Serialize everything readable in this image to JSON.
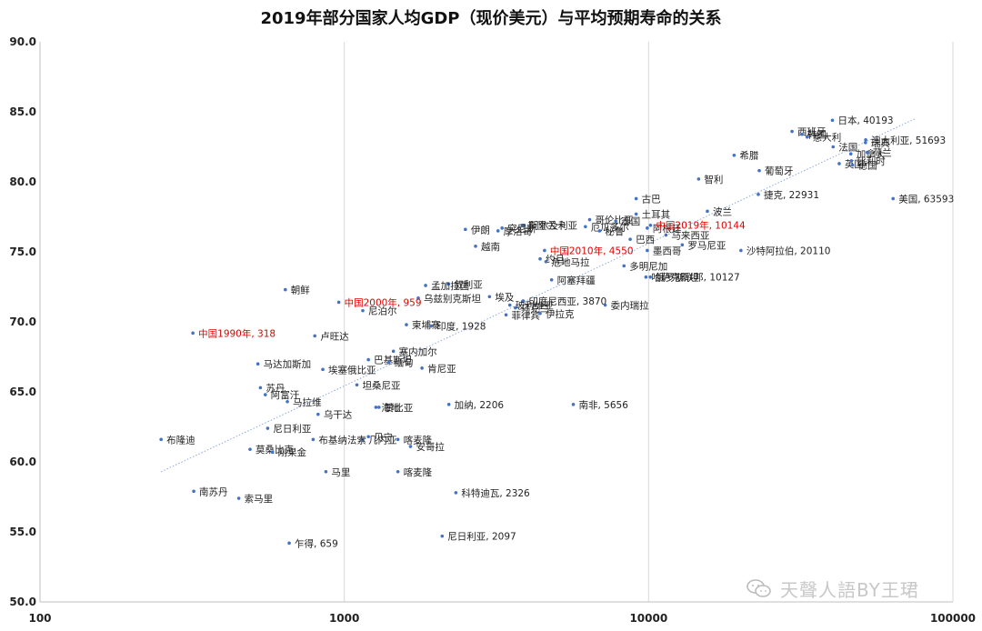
{
  "chart_data": {
    "type": "scatter",
    "title": "2019年部分国家人均GDP（现价美元）与平均预期寿命的关系",
    "x_scale": "log",
    "xlim": [
      100,
      100000
    ],
    "ylim": [
      50,
      90
    ],
    "x_ticks": [
      "100",
      "1000",
      "10000",
      "100000"
    ],
    "y_ticks": [
      "50.0",
      "55.0",
      "60.0",
      "65.0",
      "70.0",
      "75.0",
      "80.0",
      "85.0",
      "90.0"
    ],
    "grid": "vertical",
    "trendline": {
      "style": "dotted",
      "from": [
        250,
        59.3
      ],
      "to": [
        75000,
        84.5
      ]
    },
    "point_color": "#4472c4",
    "highlight_color": "#e00000",
    "points": [
      {
        "label": "日本, 40193",
        "x": 40193,
        "y": 84.4
      },
      {
        "label": "西班牙",
        "x": 29600,
        "y": 83.6
      },
      {
        "label": "韩国",
        "x": 31900,
        "y": 83.4
      },
      {
        "label": "意大利",
        "x": 33200,
        "y": 83.2
      },
      {
        "label": "瑞典",
        "x": 51600,
        "y": 82.8
      },
      {
        "label": "澳大利亚, 51693",
        "x": 51693,
        "y": 83.0
      },
      {
        "label": "法国",
        "x": 40400,
        "y": 82.5
      },
      {
        "label": "加拿大",
        "x": 46200,
        "y": 82.0
      },
      {
        "label": "荷兰",
        "x": 52300,
        "y": 82.1
      },
      {
        "label": "英国",
        "x": 42300,
        "y": 81.3
      },
      {
        "label": "比利时",
        "x": 46400,
        "y": 81.5
      },
      {
        "label": "德国",
        "x": 46800,
        "y": 81.2
      },
      {
        "label": "希腊",
        "x": 19100,
        "y": 81.9
      },
      {
        "label": "葡萄牙",
        "x": 23100,
        "y": 80.8
      },
      {
        "label": "智利",
        "x": 14600,
        "y": 80.2
      },
      {
        "label": "美国, 63593",
        "x": 63593,
        "y": 78.8
      },
      {
        "label": "捷克, 22931",
        "x": 22931,
        "y": 79.1
      },
      {
        "label": "古巴",
        "x": 9100,
        "y": 78.8
      },
      {
        "label": "土耳其",
        "x": 9100,
        "y": 77.7
      },
      {
        "label": "波兰",
        "x": 15600,
        "y": 77.9
      },
      {
        "label": "哥伦比亚",
        "x": 6400,
        "y": 77.3
      },
      {
        "label": "泰国",
        "x": 7800,
        "y": 77.2
      },
      {
        "label": "阿尔及利亚",
        "x": 3900,
        "y": 76.9
      },
      {
        "label": "斯里兰卡",
        "x": 3850,
        "y": 76.9
      },
      {
        "label": "厄瓜多尔",
        "x": 6200,
        "y": 76.8
      },
      {
        "label": "突尼斯",
        "x": 3300,
        "y": 76.7
      },
      {
        "label": "秘鲁",
        "x": 6900,
        "y": 76.5
      },
      {
        "label": "阿根廷",
        "x": 9900,
        "y": 76.7
      },
      {
        "label": "中国2019年, 10144",
        "x": 10144,
        "y": 76.9,
        "highlight": true
      },
      {
        "label": "伊朗",
        "x": 2500,
        "y": 76.6
      },
      {
        "label": "马来西亚",
        "x": 11400,
        "y": 76.2
      },
      {
        "label": "摩洛哥",
        "x": 3200,
        "y": 76.5
      },
      {
        "label": "巴西",
        "x": 8700,
        "y": 75.9
      },
      {
        "label": "越南",
        "x": 2700,
        "y": 75.4
      },
      {
        "label": "罗马尼亚",
        "x": 12900,
        "y": 75.5
      },
      {
        "label": "墨西哥",
        "x": 9900,
        "y": 75.1
      },
      {
        "label": "沙特阿拉伯, 20110",
        "x": 20110,
        "y": 75.1
      },
      {
        "label": "中国2010年, 4550",
        "x": 4550,
        "y": 75.1,
        "highlight": true
      },
      {
        "label": "约旦",
        "x": 4400,
        "y": 74.5
      },
      {
        "label": "危地马拉",
        "x": 4600,
        "y": 74.3
      },
      {
        "label": "多明尼加",
        "x": 8300,
        "y": 74.0
      },
      {
        "label": "叙利亚",
        "x": 2200,
        "y": 72.7
      },
      {
        "label": "孟加拉国",
        "x": 1850,
        "y": 72.6
      },
      {
        "label": "朝鲜",
        "x": 640,
        "y": 72.3
      },
      {
        "label": "阿塞拜疆",
        "x": 4800,
        "y": 73.0
      },
      {
        "label": "哈萨克斯坦",
        "x": 9800,
        "y": 73.2
      },
      {
        "label": "俄罗斯联邦, 10127",
        "x": 10127,
        "y": 73.2
      },
      {
        "label": "埃及",
        "x": 3000,
        "y": 71.8
      },
      {
        "label": "乌兹别克斯坦",
        "x": 1750,
        "y": 71.7
      },
      {
        "label": "印度尼西亚, 3870",
        "x": 3870,
        "y": 71.5
      },
      {
        "label": "委内瑞拉",
        "x": 7200,
        "y": 71.2
      },
      {
        "label": "中国2000年, 959",
        "x": 959,
        "y": 71.4,
        "highlight": true
      },
      {
        "label": "玻利维亚",
        "x": 3500,
        "y": 71.2
      },
      {
        "label": "乌克兰",
        "x": 3650,
        "y": 71.0
      },
      {
        "label": "菲律宾",
        "x": 3400,
        "y": 70.5
      },
      {
        "label": "尼泊尔",
        "x": 1150,
        "y": 70.8
      },
      {
        "label": "伊拉克",
        "x": 4400,
        "y": 70.6
      },
      {
        "label": "中国1990年, 318",
        "x": 318,
        "y": 69.2,
        "highlight": true
      },
      {
        "label": "卢旺达",
        "x": 800,
        "y": 69.0
      },
      {
        "label": "柬埔寨",
        "x": 1600,
        "y": 69.8
      },
      {
        "label": "印度, 1928",
        "x": 1928,
        "y": 69.7
      },
      {
        "label": "塞内加尔",
        "x": 1450,
        "y": 67.9
      },
      {
        "label": "巴基斯坦",
        "x": 1200,
        "y": 67.3
      },
      {
        "label": "缅甸",
        "x": 1400,
        "y": 67.1
      },
      {
        "label": "马达加斯加",
        "x": 520,
        "y": 67.0
      },
      {
        "label": "埃塞俄比亚",
        "x": 850,
        "y": 66.6
      },
      {
        "label": "肯尼亚",
        "x": 1800,
        "y": 66.7
      },
      {
        "label": "坦桑尼亚",
        "x": 1100,
        "y": 65.5
      },
      {
        "label": "苏丹",
        "x": 530,
        "y": 65.3
      },
      {
        "label": "阿富汗",
        "x": 550,
        "y": 64.8
      },
      {
        "label": "马拉维",
        "x": 650,
        "y": 64.3
      },
      {
        "label": "赞比亚",
        "x": 1300,
        "y": 63.9
      },
      {
        "label": "海地",
        "x": 1270,
        "y": 63.9
      },
      {
        "label": "加纳, 2206",
        "x": 2206,
        "y": 64.1
      },
      {
        "label": "南非, 5656",
        "x": 5656,
        "y": 64.1
      },
      {
        "label": "乌干达",
        "x": 820,
        "y": 63.4
      },
      {
        "label": "尼日利亚",
        "x": 560,
        "y": 62.4
      },
      {
        "label": "贝宁",
        "x": 1200,
        "y": 61.8
      },
      {
        "label": "几内亚",
        "x": 1150,
        "y": 61.6
      },
      {
        "label": "布隆迪",
        "x": 250,
        "y": 61.6
      },
      {
        "label": "布基纳法索",
        "x": 790,
        "y": 61.6
      },
      {
        "label": "喀麦隆",
        "x": 1500,
        "y": 61.6
      },
      {
        "label": "马里",
        "x": 870,
        "y": 59.3
      },
      {
        "label": "喀麦隆",
        "x": 1500,
        "y": 59.3
      },
      {
        "label": "安哥拉",
        "x": 1650,
        "y": 61.1
      },
      {
        "label": "莫桑比克",
        "x": 490,
        "y": 60.9
      },
      {
        "label": "刚果金",
        "x": 580,
        "y": 60.7
      },
      {
        "label": "南苏丹",
        "x": 320,
        "y": 57.9
      },
      {
        "label": "索马里",
        "x": 450,
        "y": 57.4
      },
      {
        "label": "科特迪瓦, 2326",
        "x": 2326,
        "y": 57.8
      },
      {
        "label": "乍得, 659",
        "x": 659,
        "y": 54.2
      },
      {
        "label": "尼日利亚, 2097",
        "x": 2097,
        "y": 54.7
      }
    ]
  },
  "watermark": {
    "text": "天聲人語BY王珺",
    "icon": "wechat-icon"
  }
}
